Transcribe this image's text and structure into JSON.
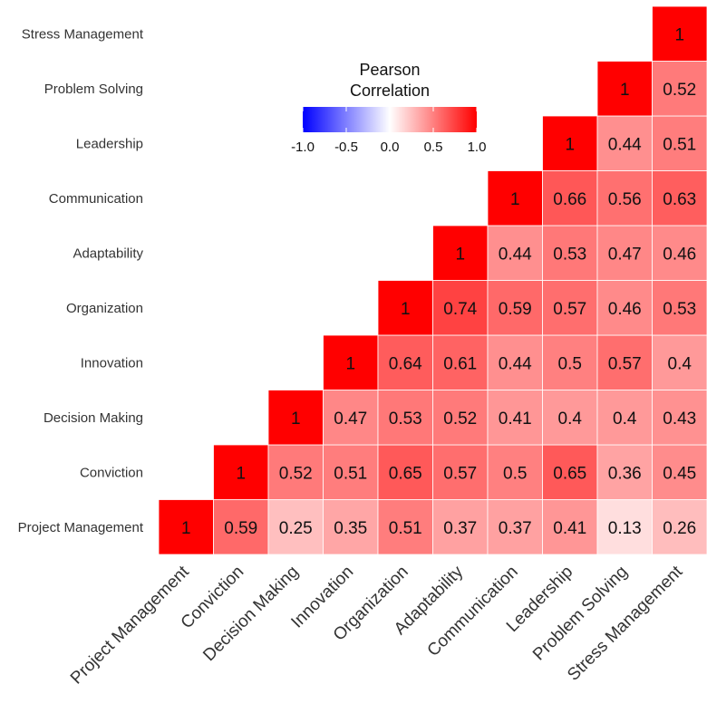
{
  "chart_data": {
    "type": "heatmap",
    "variables": [
      "Project Management",
      "Conviction",
      "Decision Making",
      "Innovation",
      "Organization",
      "Adaptability",
      "Communication",
      "Leadership",
      "Problem Solving",
      "Stress Management"
    ],
    "matrix_upper_display": [
      [
        "1",
        "0.59",
        "0.25",
        "0.35",
        "0.51",
        "0.37",
        "0.37",
        "0.41",
        "0.13",
        "0.26"
      ],
      [
        null,
        "1",
        "0.52",
        "0.51",
        "0.65",
        "0.57",
        "0.5",
        "0.65",
        "0.36",
        "0.45"
      ],
      [
        null,
        null,
        "1",
        "0.47",
        "0.53",
        "0.52",
        "0.41",
        "0.4",
        "0.4",
        "0.43"
      ],
      [
        null,
        null,
        null,
        "1",
        "0.64",
        "0.61",
        "0.44",
        "0.5",
        "0.57",
        "0.4"
      ],
      [
        null,
        null,
        null,
        null,
        "1",
        "0.74",
        "0.59",
        "0.57",
        "0.46",
        "0.53"
      ],
      [
        null,
        null,
        null,
        null,
        null,
        "1",
        "0.44",
        "0.53",
        "0.47",
        "0.46"
      ],
      [
        null,
        null,
        null,
        null,
        null,
        null,
        "1",
        "0.66",
        "0.56",
        "0.63"
      ],
      [
        null,
        null,
        null,
        null,
        null,
        null,
        null,
        "1",
        "0.44",
        "0.51"
      ],
      [
        null,
        null,
        null,
        null,
        null,
        null,
        null,
        null,
        "1",
        "0.52"
      ],
      [
        null,
        null,
        null,
        null,
        null,
        null,
        null,
        null,
        null,
        "1"
      ]
    ],
    "legend": {
      "title_lines": [
        "Pearson",
        "Correlation"
      ],
      "range": [
        -1.0,
        1.0
      ],
      "tick_values": [
        -1.0,
        -0.5,
        0.0,
        0.5,
        1.0
      ],
      "tick_labels": [
        "-1.0",
        "-0.5",
        "0.0",
        "0.5",
        "1.0"
      ],
      "placement": "inside-top-left"
    },
    "colors": {
      "low": "#0000ff",
      "mid": "#ffffff",
      "high": "#ff0000"
    }
  }
}
